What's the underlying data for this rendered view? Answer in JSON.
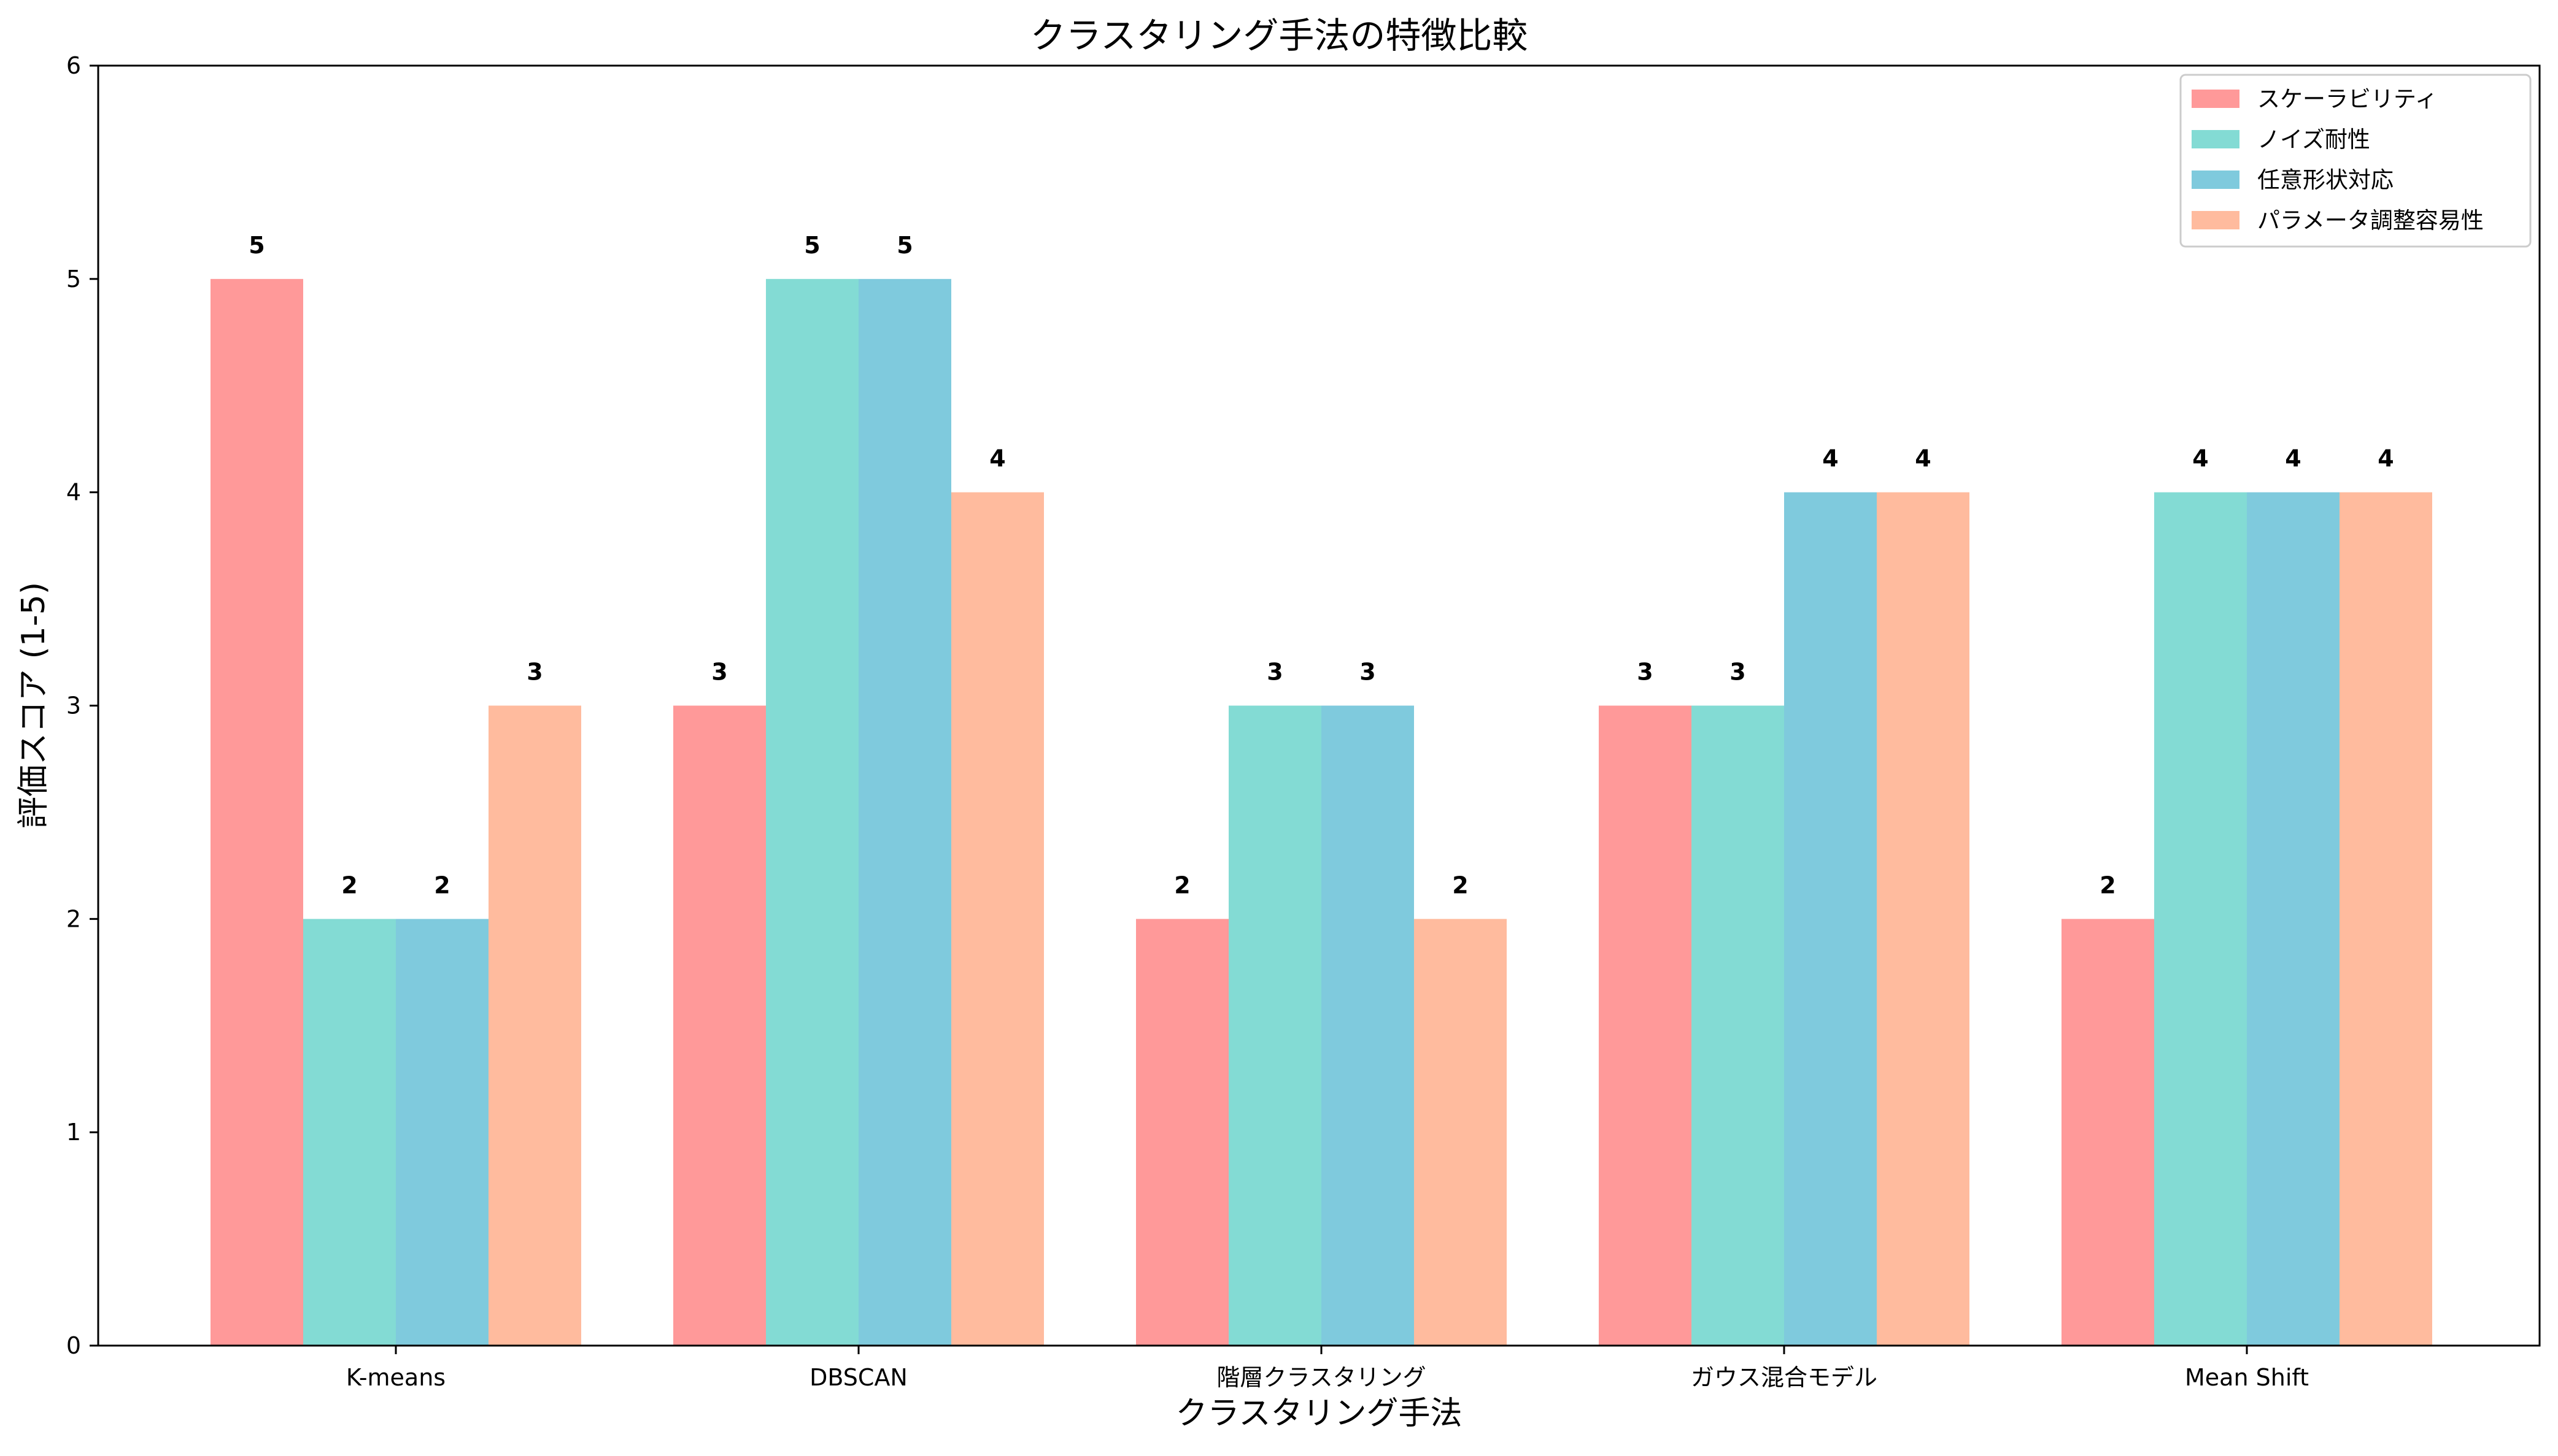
{
  "chart_data": {
    "type": "bar",
    "title": "クラスタリング手法の特徴比較",
    "xlabel": "クラスタリング手法",
    "ylabel": "評価スコア (1-5)",
    "ylim": [
      0,
      6
    ],
    "yticks": [
      "0",
      "1",
      "2",
      "3",
      "4",
      "5",
      "6"
    ],
    "categories": [
      "K-means",
      "DBSCAN",
      "階層クラスタリング",
      "ガウス混合モデル",
      "Mean Shift"
    ],
    "series": [
      {
        "name": "スケーラビリティ",
        "values": [
          5,
          3,
          2,
          3,
          2
        ],
        "color": "#FF9999"
      },
      {
        "name": "ノイズ耐性",
        "values": [
          2,
          5,
          3,
          3,
          4
        ],
        "color": "#83DBD4"
      },
      {
        "name": "任意形状対応",
        "values": [
          2,
          5,
          3,
          4,
          4
        ],
        "color": "#7FCADD"
      },
      {
        "name": "パラメータ調整容易性",
        "values": [
          3,
          4,
          2,
          4,
          4
        ],
        "color": "#FFBB9E"
      }
    ],
    "legend_position": "top-right",
    "grid": false,
    "data_labels": true
  }
}
